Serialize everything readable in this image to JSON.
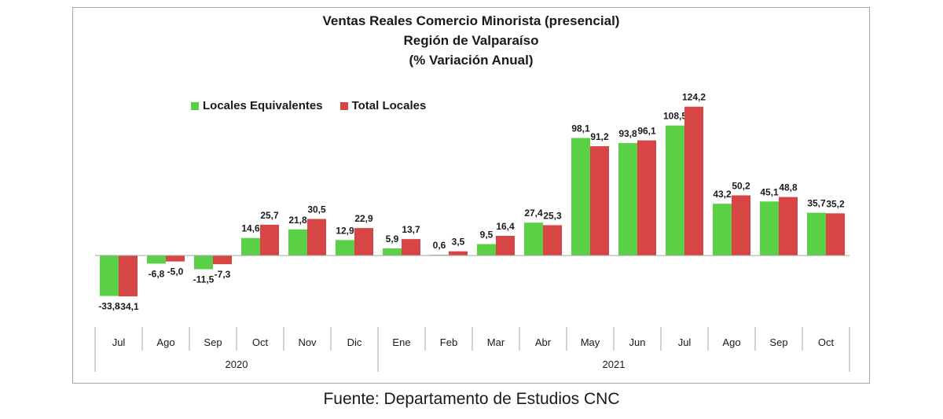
{
  "title_lines": [
    "Ventas Reales Comercio Minorista (presencial)",
    "Región de Valparaíso",
    "(% Variación Anual)"
  ],
  "source": "Fuente: Departamento de Estudios CNC",
  "colors": {
    "locales_equivalentes": "#5ad047",
    "total_locales": "#d84545"
  },
  "chart_data": {
    "type": "bar",
    "title": "Ventas Reales Comercio Minorista (presencial) Región de Valparaíso (% Variación Anual)",
    "categories": [
      "Jul",
      "Ago",
      "Sep",
      "Oct",
      "Nov",
      "Dic",
      "Ene",
      "Feb",
      "Mar",
      "Abr",
      "May",
      "Jun",
      "Jul",
      "Ago",
      "Sep",
      "Oct"
    ],
    "year_groups": [
      {
        "label": "2020",
        "count": 6
      },
      {
        "label": "2021",
        "count": 10
      }
    ],
    "series": [
      {
        "name": "Locales Equivalentes",
        "values": [
          -33.8,
          -6.8,
          -11.5,
          14.6,
          21.8,
          12.9,
          5.9,
          0.6,
          9.5,
          27.4,
          98.1,
          93.8,
          108.5,
          43.2,
          45.1,
          35.7
        ],
        "labels": [
          "-33,8",
          "-6,8",
          "-11,5",
          "14,6",
          "21,8",
          "12,9",
          "5,9",
          "0,6",
          "9,5",
          "27,4",
          "98,1",
          "93,8",
          "108,5",
          "43,2",
          "45,1",
          "35,7"
        ]
      },
      {
        "name": "Total Locales",
        "values": [
          -34.1,
          -5.0,
          -7.3,
          25.7,
          30.5,
          22.9,
          13.7,
          3.5,
          16.4,
          25.3,
          91.2,
          96.1,
          124.2,
          50.2,
          48.8,
          35.2
        ],
        "labels": [
          "-34,1",
          "-5,0",
          "-7,3",
          "25,7",
          "30,5",
          "22,9",
          "13,7",
          "3,5",
          "16,4",
          "25,3",
          "91,2",
          "96,1",
          "124,2",
          "50,2",
          "48,8",
          "35,2"
        ]
      }
    ],
    "legend": "top-left",
    "grid": false
  }
}
